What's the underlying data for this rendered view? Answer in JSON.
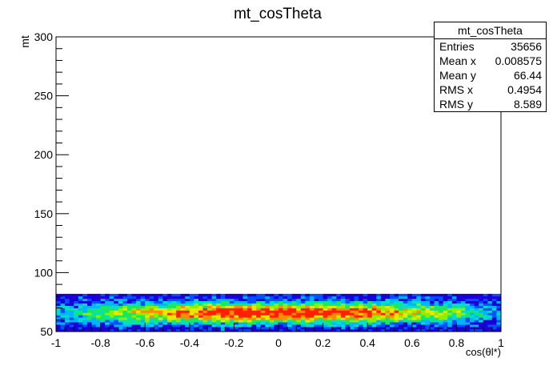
{
  "chart_data": {
    "type": "heatmap",
    "title": "mt_cosTheta",
    "xlabel": "cos(θl*)",
    "ylabel": "mt",
    "xlim": [
      -1,
      1
    ],
    "ylim": [
      50,
      300
    ],
    "x_ticks": [
      "-1",
      "-0.8",
      "-0.6",
      "-0.4",
      "-0.2",
      "0",
      "0.2",
      "0.4",
      "0.6",
      "0.8",
      "1"
    ],
    "y_ticks": [
      "50",
      "100",
      "150",
      "200",
      "250",
      "300"
    ],
    "data_y_range": [
      50,
      82
    ],
    "x_bins": 100,
    "y_bins": 16,
    "colormap": [
      "#1a00d6",
      "#0050ff",
      "#00b4ff",
      "#00e0c8",
      "#18e860",
      "#8cf000",
      "#e8e800",
      "#ff8c00",
      "#ff2000"
    ],
    "grid": false,
    "stats_box": {
      "title": "mt_cosTheta",
      "rows": [
        {
          "label": "Entries",
          "value": "35656"
        },
        {
          "label": "Mean x",
          "value": "0.008575"
        },
        {
          "label": "Mean y",
          "value": "66.44"
        },
        {
          "label": "RMS x",
          "value": "0.4954"
        },
        {
          "label": "RMS y",
          "value": "8.589"
        }
      ]
    }
  }
}
